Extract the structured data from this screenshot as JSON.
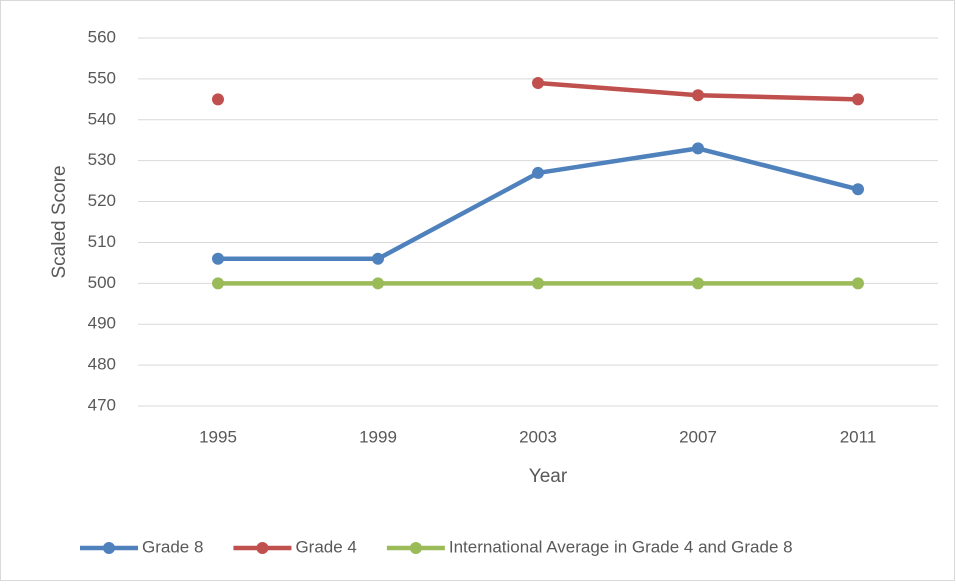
{
  "chart_data": {
    "type": "line",
    "categories": [
      "1995",
      "1999",
      "2003",
      "2007",
      "2011"
    ],
    "series": [
      {
        "name": "Grade 8",
        "color": "#4f81bd",
        "values": [
          506,
          506,
          527,
          533,
          523
        ]
      },
      {
        "name": "Grade 4",
        "color": "#c0504d",
        "values": [
          545,
          null,
          549,
          546,
          545
        ]
      },
      {
        "name": "International Average in Grade 4 and Grade 8",
        "color": "#9bbb59",
        "values": [
          500,
          500,
          500,
          500,
          500
        ]
      }
    ],
    "ylim": [
      470,
      560
    ],
    "yticks": [
      470,
      480,
      490,
      500,
      510,
      520,
      530,
      540,
      550,
      560
    ],
    "y_label": "Scaled Score",
    "x_label": "Year",
    "grid": true,
    "legend": "bottom"
  }
}
